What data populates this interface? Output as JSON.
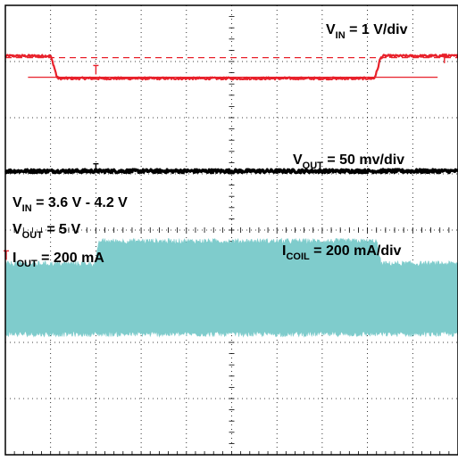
{
  "chart_data": {
    "type": "line",
    "title": "",
    "xlabel": "",
    "ylabel": "",
    "divisions": {
      "x": 10,
      "y": 8
    },
    "subdivisions_per_div": 5,
    "grid": true,
    "series": [
      {
        "id": "vin",
        "color": "#e8202a",
        "points": [
          [
            0,
            7.1
          ],
          [
            1.0,
            7.1
          ],
          [
            1.08,
            6.9
          ],
          [
            1.14,
            6.72
          ],
          [
            1.18,
            6.7
          ],
          [
            8.15,
            6.7
          ],
          [
            8.22,
            6.85
          ],
          [
            8.28,
            7.05
          ],
          [
            8.34,
            7.1
          ],
          [
            10,
            7.1
          ]
        ],
        "noise": 0.02,
        "width": 2.2
      },
      {
        "id": "vout",
        "color": "#000000",
        "points": [
          [
            0,
            5.05
          ],
          [
            10,
            5.05
          ]
        ],
        "noise": 0.03,
        "width": 3.2
      },
      {
        "id": "icoil",
        "color": "#7fcccc",
        "band": true,
        "top": [
          [
            0,
            3.4
          ],
          [
            1.98,
            3.4
          ],
          [
            2.08,
            3.8
          ],
          [
            8.2,
            3.8
          ],
          [
            8.3,
            3.4
          ],
          [
            10,
            3.4
          ]
        ],
        "bottom": [
          [
            0,
            2.15
          ],
          [
            10,
            2.15
          ]
        ],
        "noise": 0.05
      }
    ],
    "reference_lines": [
      {
        "y": 7.07,
        "color": "#e8202a",
        "dash": true,
        "x0": 0.0,
        "x1": 10
      },
      {
        "y": 6.72,
        "color": "#e8202a",
        "dash": false,
        "x0": 0.5,
        "x1": 9.55
      }
    ],
    "cursors": [
      {
        "x": 2.0,
        "y": 6.85,
        "color": "#e8202a"
      },
      {
        "x": 2.0,
        "y": 5.1,
        "color": "#000000"
      },
      {
        "x": 0.02,
        "y": 3.55,
        "color": "#e8202a"
      },
      {
        "x": 9.7,
        "y": 7.05,
        "color": "#e8202a"
      }
    ],
    "annotations": [
      {
        "id": "vin-scale",
        "main": "V",
        "sub": "IN",
        "rest": " = 1 V/div"
      },
      {
        "id": "vout-scale",
        "main": "V",
        "sub": "OUT",
        "rest": " = 50 mv/div"
      },
      {
        "id": "vin-range",
        "main": "V",
        "sub": "IN",
        "rest": " = 3.6 V - 4.2 V"
      },
      {
        "id": "vout-value",
        "main": "V",
        "sub": "OUT",
        "rest": " = 5 V"
      },
      {
        "id": "iout-value",
        "main": "I",
        "sub": "OUT",
        "rest": " = 200 mA"
      },
      {
        "id": "icoil-scale",
        "main": "I",
        "sub": "COIL",
        "rest": " = 200 mA/div"
      }
    ]
  }
}
